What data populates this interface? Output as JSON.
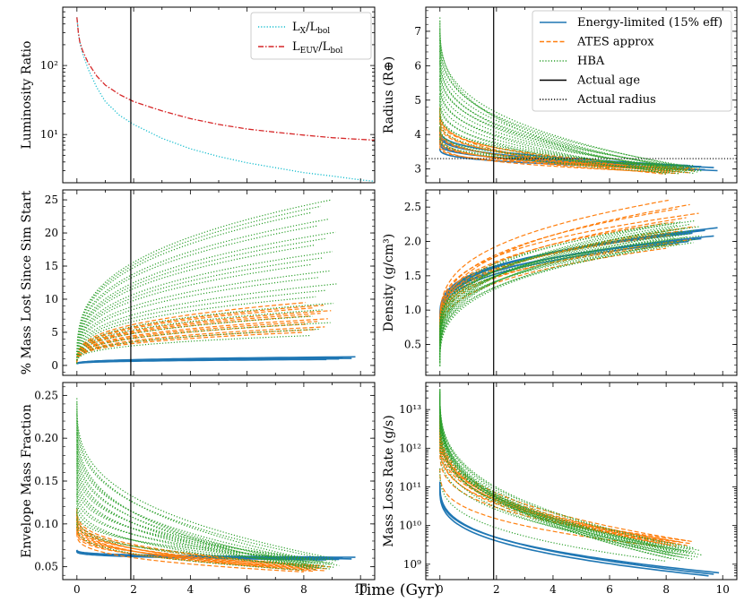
{
  "figure": {
    "xlabel": "Time (Gyr)",
    "actual_age_gyr": 1.9,
    "actual_radius_re": 3.3
  },
  "colors": {
    "energy": "#1f77b4",
    "ates": "#ff7f0e",
    "hba": "#2ca02c",
    "lx": "#17becf",
    "leuv": "#d62728",
    "black": "#000000"
  },
  "chart_data": [
    {
      "id": "lum",
      "type": "line",
      "ylabel": "Luminosity Ratio",
      "yscale": "log",
      "ylim": [
        2.0,
        700
      ],
      "xlim": [
        -0.5,
        10.5
      ],
      "ytick_labels": [
        "10¹",
        "10²"
      ],
      "series": [
        {
          "name": "L_X/L_bol",
          "label_main": "L",
          "label_sub": "X",
          "label_rest": "/L",
          "label_sub2": "bol",
          "color": "#17becf",
          "style": "dotted",
          "x": [
            0.0,
            0.05,
            0.1,
            0.2,
            0.4,
            0.7,
            1.0,
            1.5,
            2.0,
            3.0,
            4.0,
            5.0,
            6.0,
            7.0,
            8.0,
            9.0,
            10.0,
            10.5
          ],
          "y": [
            500,
            300,
            220,
            150,
            88,
            48,
            30,
            19,
            14,
            8.8,
            6.2,
            4.8,
            3.9,
            3.3,
            2.8,
            2.5,
            2.2,
            2.1
          ]
        },
        {
          "name": "L_EUV/L_bol",
          "label_main": "L",
          "label_sub": "EUV",
          "label_rest": "/L",
          "label_sub2": "bol",
          "color": "#d62728",
          "style": "dashdot",
          "x": [
            0.0,
            0.05,
            0.1,
            0.2,
            0.4,
            0.7,
            1.0,
            1.5,
            2.0,
            3.0,
            4.0,
            5.0,
            6.0,
            7.0,
            8.0,
            9.0,
            10.0,
            10.5
          ],
          "y": [
            500,
            300,
            220,
            165,
            108,
            70,
            52,
            38,
            30,
            22,
            17,
            14,
            12,
            10.8,
            9.8,
            9.0,
            8.5,
            8.3
          ]
        }
      ]
    },
    {
      "id": "radius",
      "type": "line",
      "ylabel": "Radius (R⊕)",
      "yscale": "linear",
      "ylim": [
        2.6,
        7.7
      ],
      "xlim": [
        -0.5,
        10.5
      ],
      "yticks": [
        3,
        4,
        5,
        6,
        7
      ],
      "legend": [
        {
          "label": "Energy-limited (15% eff)",
          "color": "#1f77b4",
          "style": "solid"
        },
        {
          "label": "ATES approx",
          "color": "#ff7f0e",
          "style": "dashed"
        },
        {
          "label": "HBA",
          "color": "#2ca02c",
          "style": "dotted"
        },
        {
          "label": "Actual age",
          "color": "#000000",
          "style": "solid"
        },
        {
          "label": "Actual radius",
          "color": "#000000",
          "style": "dotted"
        }
      ],
      "series": [
        {
          "name": "Energy-limited",
          "style": "solid",
          "color": "#1f77b4",
          "start": [
            4.2,
            3.5
          ],
          "end": [
            3.1,
            2.95
          ],
          "end_time": [
            8.8,
            10.0
          ],
          "n": 6
        },
        {
          "name": "ATES approx",
          "style": "dashed",
          "color": "#ff7f0e",
          "start": [
            4.8,
            3.6
          ],
          "end": [
            2.85,
            3.05
          ],
          "end_time": [
            8.0,
            9.2
          ],
          "n": 12
        },
        {
          "name": "HBA",
          "style": "dotted",
          "color": "#2ca02c",
          "start": [
            7.4,
            3.8
          ],
          "end": [
            2.85,
            3.1
          ],
          "end_time": [
            8.0,
            9.3
          ],
          "n": 22
        }
      ]
    },
    {
      "id": "massloss",
      "type": "line",
      "ylabel": "% Mass Lost Since Sim Start",
      "yscale": "linear",
      "ylim": [
        -1.5,
        26.5
      ],
      "xlim": [
        -0.5,
        10.5
      ],
      "yticks": [
        0,
        5,
        10,
        15,
        20,
        25
      ],
      "series": [
        {
          "name": "Energy-limited",
          "style": "solid",
          "color": "#1f77b4",
          "start": [
            0.2,
            0.2
          ],
          "end": [
            0.9,
            1.3
          ],
          "end_time": [
            8.8,
            10.0
          ],
          "n": 6
        },
        {
          "name": "ATES approx",
          "style": "dashed",
          "color": "#ff7f0e",
          "start": [
            0.3,
            0.3
          ],
          "end": [
            5.0,
            9.5
          ],
          "end_time": [
            8.0,
            9.0
          ],
          "n": 12
        },
        {
          "name": "HBA",
          "style": "dotted",
          "color": "#2ca02c",
          "start": [
            0.3,
            0.3
          ],
          "end": [
            4.5,
            25.0
          ],
          "end_time": [
            8.2,
            9.2
          ],
          "n": 22
        }
      ]
    },
    {
      "id": "density",
      "type": "line",
      "ylabel": "Density (g/cm³)",
      "yscale": "linear",
      "ylim": [
        0.05,
        2.75
      ],
      "xlim": [
        -0.5,
        10.5
      ],
      "yticks": [
        0.5,
        1.0,
        1.5,
        2.0,
        2.5
      ],
      "series": [
        {
          "name": "Energy-limited",
          "style": "solid",
          "color": "#1f77b4",
          "start": [
            0.75,
            0.9
          ],
          "end": [
            2.0,
            2.2
          ],
          "end_time": [
            8.8,
            10.0
          ],
          "n": 6
        },
        {
          "name": "ATES approx",
          "style": "dashed",
          "color": "#ff7f0e",
          "start": [
            0.5,
            0.8
          ],
          "end": [
            1.9,
            2.6
          ],
          "end_time": [
            8.0,
            9.2
          ],
          "n": 12
        },
        {
          "name": "HBA",
          "style": "dotted",
          "color": "#2ca02c",
          "start": [
            0.18,
            0.7
          ],
          "end": [
            1.95,
            2.3
          ],
          "end_time": [
            8.0,
            9.3
          ],
          "n": 22
        }
      ]
    },
    {
      "id": "envelope",
      "type": "line",
      "ylabel": "Envelope Mass Fraction",
      "yscale": "linear",
      "ylim": [
        0.035,
        0.265
      ],
      "xlim": [
        -0.5,
        10.5
      ],
      "yticks": [
        0.05,
        0.1,
        0.15,
        0.2,
        0.25
      ],
      "series": [
        {
          "name": "Energy-limited",
          "style": "solid",
          "color": "#1f77b4",
          "start": [
            0.068,
            0.07
          ],
          "end": [
            0.058,
            0.061
          ],
          "end_time": [
            8.8,
            10.0
          ],
          "n": 6
        },
        {
          "name": "ATES approx",
          "style": "dashed",
          "color": "#ff7f0e",
          "start": [
            0.09,
            0.12
          ],
          "end": [
            0.044,
            0.052
          ],
          "end_time": [
            8.0,
            9.0
          ],
          "n": 12
        },
        {
          "name": "HBA",
          "style": "dotted",
          "color": "#2ca02c",
          "start": [
            0.1,
            0.25
          ],
          "end": [
            0.046,
            0.06
          ],
          "end_time": [
            8.0,
            9.3
          ],
          "n": 22
        }
      ]
    },
    {
      "id": "mdot",
      "type": "line",
      "ylabel": "Mass Loss Rate (g/s)",
      "yscale": "log",
      "ylim": [
        400000000.0,
        50000000000000.0
      ],
      "xlim": [
        -0.5,
        10.5
      ],
      "ytick_labels": [
        "10⁹",
        "10¹⁰",
        "10¹¹",
        "10¹²",
        "10¹³"
      ],
      "series": [
        {
          "name": "Energy-limited",
          "style": "solid",
          "color": "#1f77b4",
          "start": [
            100000000000.0,
            160000000000.0
          ],
          "end": [
            500000000.0,
            600000000.0
          ],
          "end_time": [
            9.5,
            10.0
          ],
          "n": 3
        },
        {
          "name": "ATES approx",
          "style": "dashed",
          "color": "#ff7f0e",
          "start": [
            300000000000.0,
            8000000000000.0
          ],
          "end": [
            2800000000.0,
            4200000000.0
          ],
          "end_time": [
            8.0,
            9.0
          ],
          "n": 12
        },
        {
          "name": "HBA",
          "style": "dotted",
          "color": "#2ca02c",
          "start": [
            300000000000.0,
            35000000000000.0
          ],
          "end": [
            1200000000.0,
            2600000000.0
          ],
          "end_time": [
            8.0,
            9.3
          ],
          "n": 22
        }
      ]
    }
  ]
}
